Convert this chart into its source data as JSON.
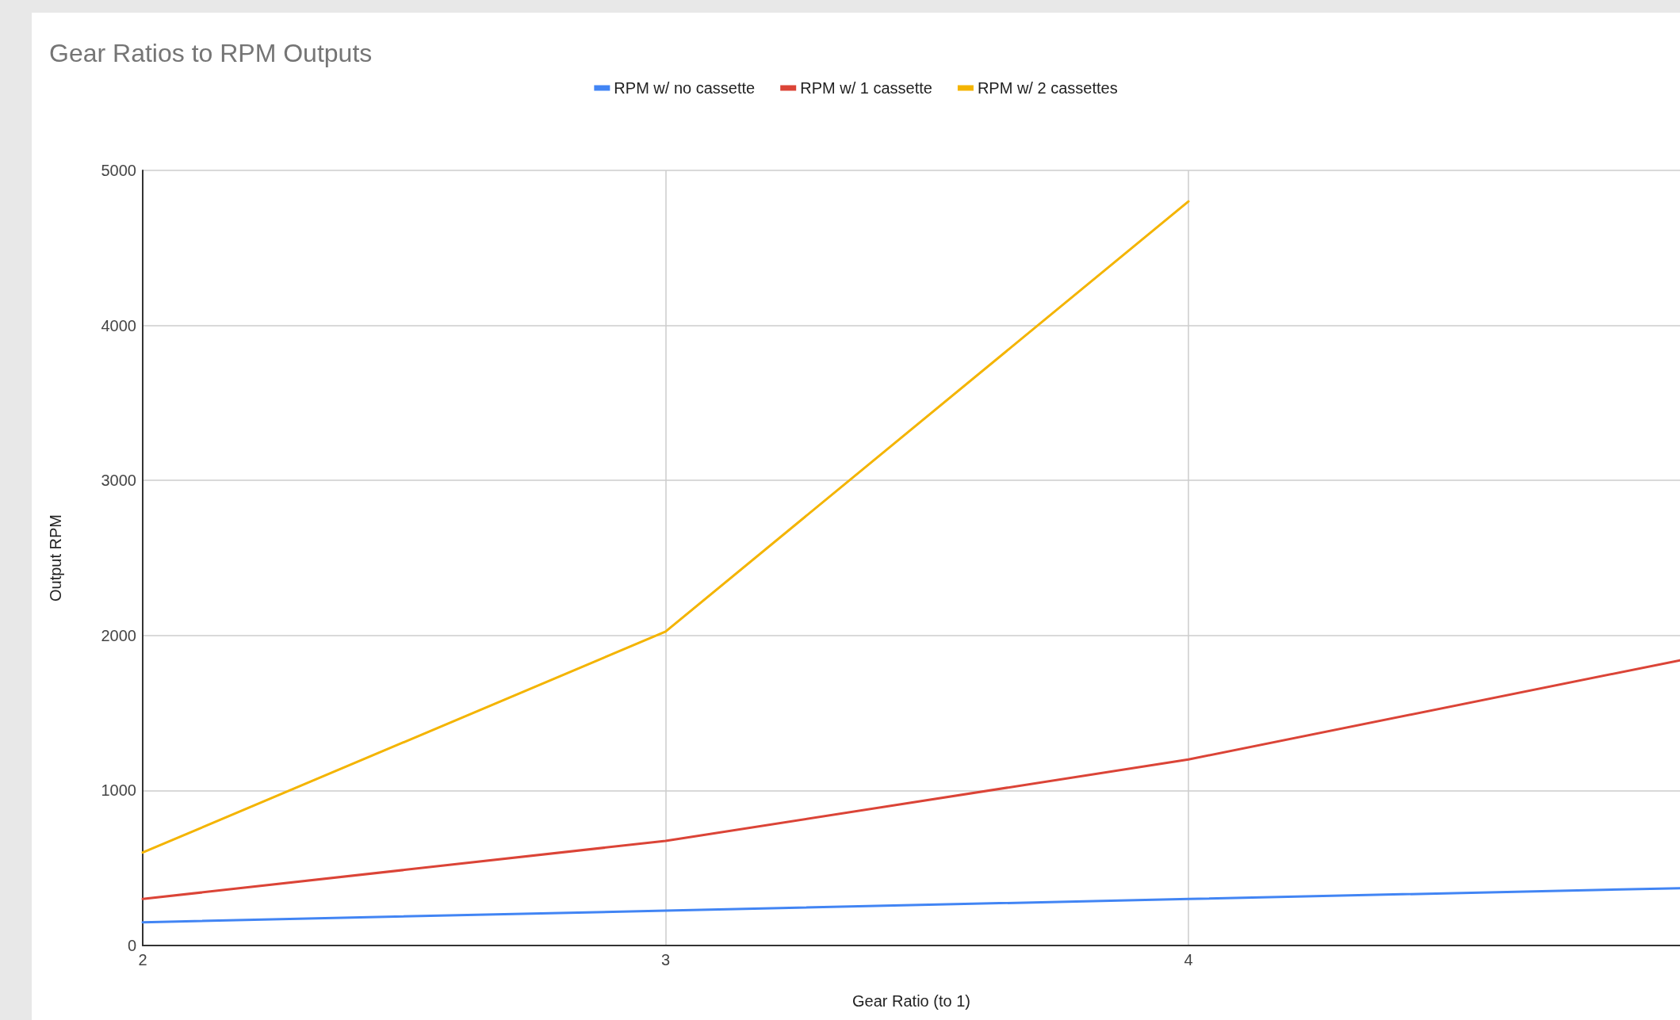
{
  "chart_data": {
    "type": "line",
    "title": "Gear Ratios to RPM Outputs",
    "xlabel": "Gear Ratio (to 1)",
    "ylabel": "Output RPM",
    "series": [
      {
        "name": "RPM w/ no cassette",
        "color": "#4285f4",
        "x": [
          2,
          3,
          4,
          4.94
        ],
        "values": [
          150,
          225,
          300,
          370
        ]
      },
      {
        "name": "RPM w/ 1 cassette",
        "color": "#db4437",
        "x": [
          2,
          3,
          4,
          4.94
        ],
        "values": [
          300,
          675,
          1200,
          1840
        ]
      },
      {
        "name": "RPM w/ 2 cassettes",
        "color": "#f4b400",
        "x": [
          2,
          3,
          4
        ],
        "values": [
          600,
          2025,
          4800
        ]
      }
    ],
    "xlim": [
      2,
      4.94
    ],
    "xticks": [
      2,
      3,
      4
    ],
    "ylim": [
      0,
      5000
    ],
    "yticks": [
      0,
      1000,
      2000,
      3000,
      4000,
      5000
    ],
    "grid": true,
    "legend": "top",
    "marker": "none",
    "line_style": "solid"
  }
}
